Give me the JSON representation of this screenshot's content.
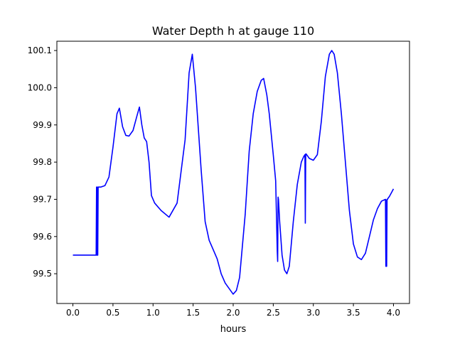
{
  "chart_data": {
    "type": "line",
    "title": "Water Depth h at gauge 110",
    "xlabel": "hours",
    "ylabel": "",
    "xlim": [
      -0.2,
      4.2
    ],
    "ylim": [
      99.42,
      100.125
    ],
    "x_ticks": [
      0.0,
      0.5,
      1.0,
      1.5,
      2.0,
      2.5,
      3.0,
      3.5,
      4.0
    ],
    "x_tick_labels": [
      "0.0",
      "0.5",
      "1.0",
      "1.5",
      "2.0",
      "2.5",
      "3.0",
      "3.5",
      "4.0"
    ],
    "y_ticks": [
      99.5,
      99.6,
      99.7,
      99.8,
      99.9,
      100.0,
      100.1
    ],
    "y_tick_labels": [
      "99.5",
      "99.6",
      "99.7",
      "99.8",
      "99.9",
      "100.0",
      "100.1"
    ],
    "grid": false,
    "legend": "none",
    "series": [
      {
        "color": "#0000ff",
        "x": [
          0.0,
          0.1,
          0.2,
          0.29,
          0.295,
          0.3,
          0.305,
          0.31,
          0.315,
          0.32,
          0.325,
          0.33,
          0.35,
          0.4,
          0.45,
          0.5,
          0.55,
          0.58,
          0.62,
          0.66,
          0.7,
          0.75,
          0.8,
          0.83,
          0.86,
          0.89,
          0.92,
          0.95,
          0.98,
          1.02,
          1.1,
          1.2,
          1.3,
          1.4,
          1.45,
          1.49,
          1.53,
          1.6,
          1.65,
          1.7,
          1.75,
          1.8,
          1.85,
          1.9,
          1.95,
          2.0,
          2.04,
          2.08,
          2.15,
          2.2,
          2.25,
          2.3,
          2.35,
          2.38,
          2.42,
          2.45,
          2.5,
          2.53,
          2.55,
          2.555,
          2.56,
          2.565,
          2.58,
          2.61,
          2.64,
          2.67,
          2.7,
          2.75,
          2.8,
          2.85,
          2.88,
          2.895,
          2.9,
          2.905,
          2.91,
          2.95,
          3.0,
          3.05,
          3.1,
          3.15,
          3.2,
          3.23,
          3.26,
          3.3,
          3.35,
          3.4,
          3.45,
          3.5,
          3.55,
          3.6,
          3.65,
          3.7,
          3.75,
          3.8,
          3.85,
          3.88,
          3.9,
          3.905,
          3.91,
          3.915,
          3.92,
          3.925,
          3.93,
          3.95,
          3.98,
          4.0
        ],
        "y": [
          99.55,
          99.55,
          99.55,
          99.55,
          99.733,
          99.55,
          99.733,
          99.55,
          99.733,
          99.733,
          99.733,
          99.733,
          99.733,
          99.737,
          99.76,
          99.84,
          99.93,
          99.945,
          99.895,
          99.872,
          99.87,
          99.885,
          99.925,
          99.948,
          99.9,
          99.865,
          99.855,
          99.8,
          99.71,
          99.69,
          99.67,
          99.652,
          99.69,
          99.86,
          100.04,
          100.09,
          100.0,
          99.78,
          99.64,
          99.59,
          99.565,
          99.54,
          99.5,
          99.475,
          99.46,
          99.445,
          99.455,
          99.49,
          99.66,
          99.83,
          99.93,
          99.99,
          100.02,
          100.025,
          99.98,
          99.93,
          99.82,
          99.75,
          99.56,
          99.533,
          99.706,
          99.7,
          99.64,
          99.55,
          99.51,
          99.5,
          99.52,
          99.64,
          99.74,
          99.8,
          99.815,
          99.82,
          99.636,
          99.822,
          99.822,
          99.81,
          99.805,
          99.82,
          99.91,
          100.03,
          100.09,
          100.1,
          100.09,
          100.04,
          99.93,
          99.8,
          99.67,
          99.58,
          99.545,
          99.538,
          99.555,
          99.6,
          99.645,
          99.675,
          99.695,
          99.698,
          99.7,
          99.52,
          99.698,
          99.52,
          99.7,
          99.7,
          99.702,
          99.708,
          99.72,
          99.728
        ]
      }
    ]
  }
}
